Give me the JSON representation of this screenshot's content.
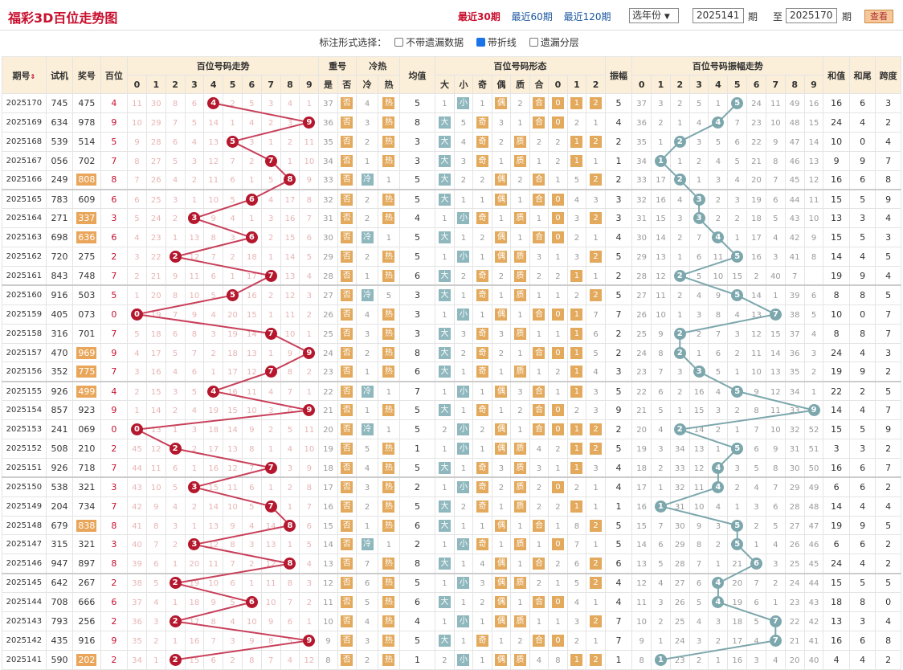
{
  "header": {
    "title": "福彩3D百位走势图",
    "ranges": [
      "最近30期",
      "最近60期",
      "最近120期"
    ],
    "active_range": 0,
    "year_select": "选年份",
    "from": "2025141",
    "to": "2025170",
    "qi1": "期",
    "zhi": "至",
    "qi2": "期",
    "query": "查看"
  },
  "options": {
    "label": "标注形式选择：",
    "items": [
      {
        "label": "不带遗漏数据",
        "checked": false
      },
      {
        "label": "带折线",
        "checked": true
      },
      {
        "label": "遗漏分层",
        "checked": false
      }
    ]
  },
  "colors": {
    "ball": "#b5172d",
    "amp_ball": "#7ca7ad",
    "orange": "#e3a95c",
    "teal": "#8fb8be"
  },
  "cols": {
    "issue": "期号",
    "test": "试机",
    "prize": "奖号",
    "bai": "百位",
    "trend": "百位号码走势",
    "repeat": "重号",
    "hotcold": "冷热",
    "avg": "均值",
    "form": "百位号码形态",
    "amp": "振幅",
    "amptrend": "百位号码振幅走势",
    "sum": "和值",
    "tail": "和尾",
    "span": "跨度",
    "sub_repeat": [
      "是",
      "否"
    ],
    "sub_hot": [
      "冷",
      "热"
    ],
    "sub_form": [
      "大",
      "小",
      "奇",
      "偶",
      "质",
      "合",
      "0",
      "1",
      "2"
    ],
    "digits": [
      "0",
      "1",
      "2",
      "3",
      "4",
      "5",
      "6",
      "7",
      "8",
      "9"
    ]
  },
  "rows": [
    [
      "2025170",
      "745",
      "475",
      4,
      "11 30 8 6 4 2 5 3 4 1",
      [
        37,
        "否"
      ],
      [
        4,
        "热"
      ],
      5,
      "1 小 1 偶 2 合 0 1 2",
      5,
      "37 3 2 5 1 5 24 11 49 16",
      16,
      6,
      3,
      false
    ],
    [
      "2025169",
      "634",
      "978",
      9,
      "10 29 7 5 14 1 4 2 3 9",
      [
        36,
        "否"
      ],
      [
        3,
        "热"
      ],
      8,
      "大 5 奇 3 1 合 0 2 1",
      4,
      "36 2 1 4 4 7 23 10 48 15",
      24,
      4,
      2,
      false
    ],
    [
      "2025168",
      "539",
      "514",
      5,
      "9 28 6 4 13 5 3 1 2 11",
      [
        35,
        "否"
      ],
      [
        2,
        "热"
      ],
      3,
      "大 4 奇 2 质 2 2 1 2",
      2,
      "35 1 2 3 5 6 22 9 47 14",
      10,
      0,
      4,
      false
    ],
    [
      "2025167",
      "056",
      "702",
      7,
      "8 27 5 3 12 7 2 7 1 10",
      [
        34,
        "否"
      ],
      [
        1,
        "热"
      ],
      3,
      "大 3 奇 1 质 1 2 1 1",
      1,
      "34 1 1 2 4 5 21 8 46 13",
      9,
      9,
      7,
      false
    ],
    [
      "2025166",
      "249",
      "808",
      8,
      "7 26 4 2 11 6 1 5 8 9",
      [
        33,
        "否"
      ],
      [
        "冷",
        1
      ],
      5,
      "大 2 2 偶 2 合 1 5 2",
      2,
      "33 17 2 1 3 4 20 7 45 12",
      16,
      6,
      8,
      true
    ],
    [
      "2025165",
      "783",
      "609",
      6,
      "6 25 3 1 10 5 6 4 17 8",
      [
        32,
        "否"
      ],
      [
        2,
        "热"
      ],
      5,
      "大 1 1 偶 1 合 0 4 3",
      3,
      "32 16 4 3 2 3 19 6 44 11",
      15,
      5,
      9,
      false
    ],
    [
      "2025164",
      "271",
      "337",
      3,
      "5 24 2 3 9 4 1 3 16 7",
      [
        31,
        "否"
      ],
      [
        2,
        "热"
      ],
      4,
      "1 小 奇 1 质 1 0 3 2",
      3,
      "31 15 3 3 2 2 18 5 43 10",
      13,
      3,
      4,
      true
    ],
    [
      "2025163",
      "698",
      "636",
      6,
      "4 23 1 13 8 3 6 2 15 6",
      [
        30,
        "否"
      ],
      [
        "冷",
        1
      ],
      5,
      "大 1 2 偶 1 合 0 2 1",
      4,
      "30 14 2 7 4 1 17 4 42 9",
      15,
      5,
      3,
      true
    ],
    [
      "2025162",
      "720",
      "275",
      2,
      "3 22 2 12 7 2 18 1 14 5",
      [
        29,
        "否"
      ],
      [
        2,
        "热"
      ],
      5,
      "1 小 1 偶 质 3 1 3 2",
      5,
      "29 13 1 6 11 5 16 3 41 8",
      14,
      4,
      5,
      false
    ],
    [
      "2025161",
      "843",
      "748",
      7,
      "2 21 9 11 6 1 17 7 13 4",
      [
        28,
        "否"
      ],
      [
        1,
        "热"
      ],
      6,
      "大 2 奇 2 质 2 2 1 1",
      2,
      "28 12 2 5 10 15 2 40 7",
      19,
      9,
      4,
      false
    ],
    [
      "2025160",
      "916",
      "503",
      5,
      "1 20 8 10 5 5 16 2 12 3",
      [
        27,
        "否"
      ],
      [
        "冷",
        5
      ],
      3,
      "大 1 奇 1 质 1 1 2 2",
      5,
      "27 11 2 4 9 5 14 1 39 6",
      8,
      8,
      5,
      false
    ],
    [
      "2025159",
      "405",
      "073",
      0,
      "0 19 7 9 4 20 15 1 11 2",
      [
        26,
        "否"
      ],
      [
        4,
        "热"
      ],
      3,
      "1 小 1 偶 1 合 0 1 7",
      7,
      "26 10 1 3 8 4 13 7 38 5",
      10,
      0,
      7,
      false
    ],
    [
      "2025158",
      "316",
      "701",
      7,
      "5 18 6 8 3 19 14 7 10 1",
      [
        25,
        "否"
      ],
      [
        3,
        "热"
      ],
      3,
      "大 3 奇 3 质 1 1 1 6",
      2,
      "25 9 2 2 7 3 12 15 37 4",
      8,
      8,
      7,
      false
    ],
    [
      "2025157",
      "470",
      "969",
      9,
      "4 17 5 7 2 18 13 1 9 9",
      [
        24,
        "否"
      ],
      [
        2,
        "热"
      ],
      8,
      "大 2 奇 2 1 合 0 1 5",
      2,
      "24 8 2 1 6 2 11 14 36 3",
      24,
      4,
      3,
      true
    ],
    [
      "2025156",
      "352",
      "775",
      7,
      "3 16 4 6 1 17 12 7 8 2",
      [
        23,
        "否"
      ],
      [
        1,
        "热"
      ],
      6,
      "大 1 奇 1 质 1 2 1 4",
      3,
      "23 7 3 3 5 1 10 13 35 2",
      19,
      9,
      2,
      true
    ],
    [
      "2025155",
      "926",
      "499",
      4,
      "2 15 3 5 4 16 11 4 7 1",
      [
        22,
        "否"
      ],
      [
        "冷",
        1
      ],
      7,
      "1 小 1 偶 3 合 1 1 3",
      5,
      "22 6 2 16 4 5 9 12 34 1",
      22,
      2,
      5,
      true
    ],
    [
      "2025154",
      "857",
      "923",
      9,
      "1 14 2 4 19 15 10 3 6 9",
      [
        21,
        "否"
      ],
      [
        1,
        "热"
      ],
      5,
      "大 1 奇 1 2 合 0 2 3",
      9,
      "21 5 1 15 3 2 8 11 33 9",
      14,
      4,
      7,
      false
    ],
    [
      "2025153",
      "241",
      "069",
      0,
      "0 13 1 3 18 14 9 2 5 11",
      [
        20,
        "否"
      ],
      [
        "冷",
        1
      ],
      5,
      "2 小 2 偶 1 合 0 1 2",
      2,
      "20 4 2 14 2 1 7 10 32 52",
      15,
      5,
      9,
      false
    ],
    [
      "2025152",
      "508",
      "210",
      2,
      "45 12 2 2 17 13 8 1 4 10",
      [
        19,
        "否"
      ],
      [
        5,
        "热"
      ],
      1,
      "1 小 1 偶 质 4 2 1 2",
      5,
      "19 3 34 13 1 5 6 9 31 51",
      3,
      3,
      2,
      false
    ],
    [
      "2025151",
      "926",
      "718",
      7,
      "44 11 6 1 16 12 7 7 3 9",
      [
        18,
        "否"
      ],
      [
        4,
        "热"
      ],
      5,
      "大 1 奇 3 质 3 1 1 3",
      4,
      "18 2 33 12 4 3 5 8 30 50",
      16,
      6,
      7,
      false
    ],
    [
      "2025150",
      "538",
      "321",
      3,
      "43 10 5 3 15 11 6 1 2 8",
      [
        17,
        "否"
      ],
      [
        3,
        "热"
      ],
      2,
      "1 小 奇 2 质 2 0 2 1",
      4,
      "17 1 32 11 4 2 4 7 29 49",
      6,
      6,
      2,
      false
    ],
    [
      "2025149",
      "204",
      "734",
      7,
      "42 9 4 2 14 10 5 7 1 7",
      [
        16,
        "否"
      ],
      [
        2,
        "热"
      ],
      5,
      "大 2 奇 1 质 2 2 1 1",
      1,
      "16 1 31 10 4 1 3 6 28 48",
      14,
      4,
      4,
      false
    ],
    [
      "2025148",
      "679",
      "838",
      8,
      "41 8 3 1 13 9 4 14 8 6",
      [
        15,
        "否"
      ],
      [
        1,
        "热"
      ],
      6,
      "大 1 1 偶 1 合 1 8 2",
      5,
      "15 7 30 9 3 5 2 5 27 47",
      19,
      9,
      5,
      true
    ],
    [
      "2025147",
      "315",
      "321",
      3,
      "40 7 2 3 12 8 3 13 1 5",
      [
        14,
        "否"
      ],
      [
        "冷",
        1
      ],
      2,
      "1 小 奇 1 质 1 0 7 1",
      5,
      "14 6 29 8 2 5 1 4 26 46",
      6,
      6,
      2,
      false
    ],
    [
      "2025146",
      "947",
      "897",
      8,
      "39 6 1 20 11 7 2 12 8 4",
      [
        13,
        "否"
      ],
      [
        7,
        "热"
      ],
      8,
      "大 1 4 偶 1 合 2 6 2",
      6,
      "13 5 28 7 1 21 6 3 25 45",
      24,
      4,
      2,
      false
    ],
    [
      "2025145",
      "642",
      "267",
      2,
      "38 5 2 19 10 6 1 11 8 3",
      [
        12,
        "否"
      ],
      [
        6,
        "热"
      ],
      5,
      "1 小 3 偶 质 2 1 5 2",
      4,
      "12 4 27 6 4 20 7 2 24 44",
      15,
      5,
      5,
      false
    ],
    [
      "2025144",
      "708",
      "666",
      6,
      "37 4 1 18 9 5 6 10 7 2",
      [
        11,
        "否"
      ],
      [
        5,
        "热"
      ],
      6,
      "大 1 2 偶 1 合 0 4 1",
      4,
      "11 3 26 5 4 19 6 1 23 43",
      18,
      8,
      0,
      false
    ],
    [
      "2025143",
      "793",
      "256",
      2,
      "36 3 2 17 8 4 10 9 6 1",
      [
        10,
        "否"
      ],
      [
        4,
        "热"
      ],
      4,
      "1 小 1 偶 质 1 1 3 2",
      7,
      "10 2 25 4 3 18 5 7 22 42",
      13,
      3,
      4,
      false
    ],
    [
      "2025142",
      "435",
      "916",
      9,
      "35 2 1 16 7 3 9 8 5 9",
      [
        9,
        "否"
      ],
      [
        3,
        "热"
      ],
      5,
      "大 1 奇 1 2 合 0 2 1",
      7,
      "9 1 24 3 2 17 4 7 21 41",
      16,
      6,
      8,
      false
    ],
    [
      "2025141",
      "590",
      "202",
      2,
      "34 1 2 15 6 2 8 7 4 12",
      [
        8,
        "否"
      ],
      [
        2,
        "热"
      ],
      1,
      "2 小 1 偶 质 4 8 1 2",
      1,
      "8 1 23 2 1 16 3 4 20 40",
      4,
      4,
      2,
      true
    ]
  ]
}
